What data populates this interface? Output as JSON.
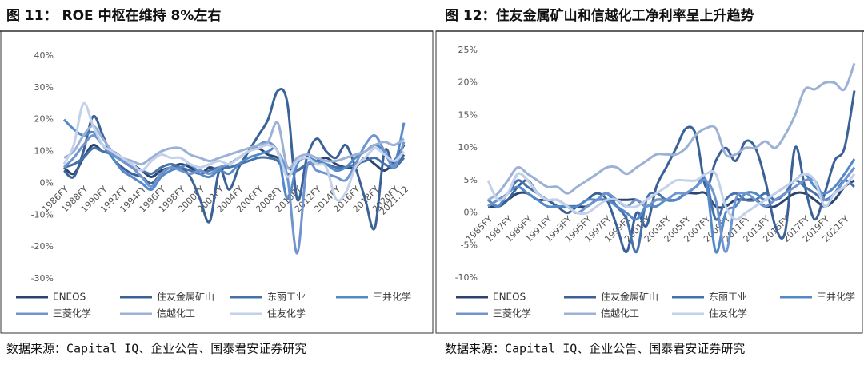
{
  "chart_data": [
    {
      "type": "line",
      "title": "图 11： ROE 中枢在维持 8%左右",
      "source": "数据来源：Capital IQ、企业公告、国泰君安证券研究",
      "categories": [
        "1986FY",
        null,
        "1988FY",
        null,
        "1990FY",
        null,
        "1992FY",
        null,
        "1994FY",
        null,
        "1996FY",
        null,
        "1998FY",
        null,
        "2000FY",
        null,
        "2002FY",
        null,
        "2004FY",
        null,
        "2006FY",
        null,
        "2008FY",
        null,
        "2010FY",
        null,
        "2012FY",
        null,
        "2014FY",
        null,
        "2016FY",
        null,
        "2018FY",
        null,
        "2020FY",
        "2021.12"
      ],
      "ylim": [
        -30,
        40
      ],
      "yticks": [
        {
          "value": -30,
          "label": "-30%"
        },
        {
          "value": -20,
          "label": "-20%"
        },
        {
          "value": -10,
          "label": "-10%"
        },
        {
          "value": 0,
          "label": "0%"
        },
        {
          "value": 10,
          "label": "10%"
        },
        {
          "value": 20,
          "label": "20%"
        },
        {
          "value": 30,
          "label": "30%"
        },
        {
          "value": 40,
          "label": "40%"
        }
      ],
      "grid": false,
      "series": [
        {
          "name": "ENEOS",
          "color": "#2b4570",
          "values": [
            5,
            3,
            8,
            12,
            10,
            10,
            8,
            6,
            4,
            2,
            4,
            5,
            6,
            5,
            3,
            5,
            4,
            6,
            8,
            10,
            11,
            9,
            8,
            5,
            4,
            6,
            7,
            8,
            6,
            5,
            5,
            8,
            6,
            4,
            7,
            12
          ]
        },
        {
          "name": "住友金属矿山",
          "color": "#3a6296",
          "values": [
            4,
            2,
            10,
            21,
            15,
            8,
            5,
            3,
            2,
            0,
            3,
            5,
            5,
            2,
            -5,
            -12,
            4,
            -2,
            5,
            10,
            15,
            20,
            29,
            25,
            -5,
            8,
            14,
            10,
            8,
            12,
            5,
            -5,
            -14,
            10,
            5,
            9
          ]
        },
        {
          "name": "东丽工业",
          "color": "#4672aa",
          "values": [
            5,
            6,
            8,
            11,
            10,
            9,
            7,
            5,
            4,
            3,
            5,
            6,
            5,
            4,
            3,
            4,
            5,
            5,
            6,
            7,
            8,
            8,
            7,
            3,
            4,
            6,
            6,
            6,
            5,
            5,
            6,
            7,
            8,
            6,
            5,
            8
          ]
        },
        {
          "name": "三井化学",
          "color": "#5489c8",
          "values": [
            20,
            17,
            15,
            16,
            12,
            8,
            4,
            2,
            0,
            -2,
            2,
            4,
            5,
            6,
            3,
            2,
            4,
            3,
            6,
            8,
            9,
            10,
            10,
            -5,
            6,
            8,
            7,
            6,
            4,
            5,
            8,
            10,
            12,
            10,
            6,
            19
          ]
        },
        {
          "name": "三菱化学",
          "color": "#6f94cf",
          "values": [
            5,
            8,
            12,
            15,
            12,
            9,
            7,
            5,
            2,
            -1,
            3,
            5,
            4,
            3,
            4,
            3,
            5,
            6,
            8,
            10,
            12,
            13,
            10,
            2,
            -22,
            5,
            4,
            3,
            2,
            1,
            6,
            12,
            15,
            10,
            5,
            13
          ]
        },
        {
          "name": "信越化工",
          "color": "#9cb1d6",
          "values": [
            8,
            10,
            15,
            18,
            14,
            10,
            8,
            7,
            6,
            8,
            10,
            11,
            11,
            9,
            8,
            7,
            8,
            9,
            10,
            11,
            12,
            13,
            19,
            5,
            8,
            9,
            8,
            7,
            7,
            8,
            9,
            10,
            12,
            13,
            12,
            14
          ]
        },
        {
          "name": "住友化学",
          "color": "#c3d1ea",
          "values": [
            6,
            12,
            25,
            18,
            12,
            10,
            8,
            6,
            4,
            7,
            9,
            8,
            8,
            6,
            5,
            6,
            7,
            6,
            8,
            10,
            11,
            12,
            10,
            2,
            7,
            8,
            6,
            5,
            -5,
            -3,
            5,
            8,
            11,
            9,
            7,
            10
          ]
        }
      ]
    },
    {
      "type": "line",
      "title": "图 12：住友金属矿山和信越化工净利率呈上升趋势",
      "source": "数据来源：Capital IQ、企业公告、国泰君安证券研究",
      "categories": [
        "1985FY",
        null,
        "1987FY",
        null,
        "1989FY",
        null,
        "1991FY",
        null,
        "1993FY",
        null,
        "1995FY",
        null,
        "1997FY",
        null,
        "1999FY",
        null,
        "2001FY",
        null,
        "2003FY",
        null,
        "2005FY",
        null,
        "2007FY",
        null,
        "2009FY",
        null,
        "2011FY",
        null,
        "2013FY",
        null,
        "2015FY",
        null,
        "2017FY",
        null,
        "2019FY",
        null,
        "2021FY",
        null
      ],
      "ylim": [
        -10,
        25
      ],
      "yticks": [
        {
          "value": -10,
          "label": "-10%"
        },
        {
          "value": -5,
          "label": "-5%"
        },
        {
          "value": 0,
          "label": "0%"
        },
        {
          "value": 5,
          "label": "5%"
        },
        {
          "value": 10,
          "label": "10%"
        },
        {
          "value": 15,
          "label": "15%"
        },
        {
          "value": 20,
          "label": "20%"
        },
        {
          "value": 25,
          "label": "25%"
        }
      ],
      "grid": false,
      "series": [
        {
          "name": "ENEOS",
          "color": "#2b4570",
          "values": [
            1,
            1,
            2,
            3,
            3,
            2,
            2,
            1,
            1,
            1,
            1,
            2,
            2,
            2,
            2,
            2,
            1,
            2,
            2,
            2,
            3,
            3,
            3,
            1,
            1,
            2,
            2,
            2,
            1,
            1,
            2,
            3,
            3,
            2,
            1,
            2,
            4,
            5
          ]
        },
        {
          "name": "住友金属矿山",
          "color": "#3a6296",
          "values": [
            2,
            1,
            2,
            4,
            5,
            3,
            2,
            1,
            0,
            1,
            2,
            3,
            2,
            -2,
            -6,
            0,
            -2,
            4,
            7,
            10,
            13,
            12,
            4,
            8,
            10,
            8,
            11,
            10,
            5,
            -2,
            -3,
            10,
            4,
            -1,
            3,
            8,
            10,
            18.8
          ]
        },
        {
          "name": "东丽工业",
          "color": "#4672aa",
          "values": [
            1,
            2,
            3,
            5,
            4,
            3,
            2,
            2,
            1,
            0,
            1,
            2,
            3,
            1,
            -1,
            -6,
            2,
            3,
            2,
            2,
            3,
            4,
            5,
            -1,
            2,
            3,
            2,
            2,
            3,
            2,
            3,
            5,
            4,
            3,
            2,
            3,
            5,
            4
          ]
        },
        {
          "name": "三井化学",
          "color": "#5489c8",
          "values": [
            2,
            1,
            3,
            4,
            3,
            2,
            1,
            1,
            1,
            1,
            2,
            2,
            2,
            1,
            0,
            -1,
            1,
            1,
            2,
            2,
            3,
            4,
            5,
            -6,
            0,
            1,
            3,
            3,
            2,
            3,
            4,
            5,
            6,
            4,
            3,
            4,
            6,
            8.3
          ]
        },
        {
          "name": "三菱化学",
          "color": "#6f94cf",
          "values": [
            1,
            2,
            3,
            6,
            5,
            3,
            2,
            2,
            1,
            0,
            1,
            2,
            3,
            2,
            1,
            2,
            1,
            2,
            2,
            3,
            3,
            4,
            5,
            2,
            -6,
            2,
            3,
            2,
            1,
            2,
            3,
            4,
            5,
            5,
            2,
            3,
            5,
            7
          ]
        },
        {
          "name": "信越化工",
          "color": "#9cb1d6",
          "values": [
            2,
            3,
            5,
            7,
            6,
            5,
            4,
            4,
            3,
            4,
            5,
            6,
            7,
            7,
            6,
            7,
            8,
            9,
            9,
            9,
            10,
            12,
            13,
            13,
            9,
            9,
            10,
            10,
            11,
            10,
            12,
            15,
            19,
            19,
            20,
            20,
            19,
            23
          ]
        },
        {
          "name": "住友化学",
          "color": "#c3d1ea",
          "values": [
            5,
            2,
            3,
            6,
            5,
            3,
            2,
            2,
            1,
            0,
            0,
            1,
            2,
            2,
            1,
            1,
            2,
            3,
            4,
            5,
            5,
            5,
            6,
            6,
            1,
            -1,
            0,
            1,
            2,
            3,
            4,
            5,
            6,
            5,
            1,
            3,
            4,
            6
          ]
        }
      ]
    }
  ]
}
